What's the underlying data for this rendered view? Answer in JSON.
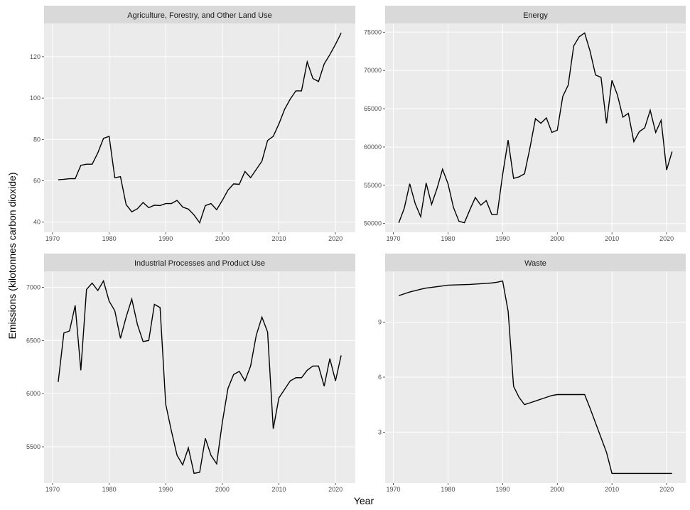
{
  "xlabel": "Year",
  "ylabel": "Emissions (kilotonnes carbon dioxide)",
  "chart_data": [
    {
      "type": "line",
      "title": "Agriculture, Forestry, and Other Land Use",
      "color": "#000000",
      "grid": true,
      "x": [
        1971,
        1972,
        1973,
        1974,
        1975,
        1976,
        1977,
        1978,
        1979,
        1980,
        1981,
        1982,
        1983,
        1984,
        1985,
        1986,
        1987,
        1988,
        1989,
        1990,
        1991,
        1992,
        1993,
        1994,
        1995,
        1996,
        1997,
        1998,
        1999,
        2000,
        2001,
        2002,
        2003,
        2004,
        2005,
        2006,
        2007,
        2008,
        2009,
        2010,
        2011,
        2012,
        2013,
        2014,
        2015,
        2016,
        2017,
        2018,
        2019,
        2020,
        2021
      ],
      "values": [
        60.5,
        60.7,
        61,
        61,
        67.5,
        68,
        68,
        73.5,
        80.5,
        81.5,
        61.5,
        62,
        48.5,
        45,
        46.5,
        49.5,
        47,
        48.2,
        48,
        49,
        49,
        50.5,
        47.3,
        46.3,
        43.5,
        39.7,
        48,
        49,
        46,
        50.5,
        55.5,
        58.5,
        58.3,
        64.5,
        61.5,
        65.5,
        69.5,
        79.5,
        81.5,
        87.5,
        94.5,
        99.5,
        103.5,
        103.5,
        117.5,
        109.5,
        108,
        116.5,
        121,
        126,
        131.5
      ],
      "xlim": [
        1968.5,
        2023.5
      ],
      "xticks": [
        1970,
        1980,
        1990,
        2000,
        2010,
        2020
      ],
      "ylim": [
        35.1,
        136.1
      ],
      "yticks": [
        40,
        60,
        80,
        100,
        120
      ]
    },
    {
      "type": "line",
      "title": "Energy",
      "color": "#000000",
      "grid": true,
      "x": [
        1971,
        1972,
        1973,
        1974,
        1975,
        1976,
        1977,
        1978,
        1979,
        1980,
        1981,
        1982,
        1983,
        1984,
        1985,
        1986,
        1987,
        1988,
        1989,
        1990,
        1991,
        1992,
        1993,
        1994,
        1995,
        1996,
        1997,
        1998,
        1999,
        2000,
        2001,
        2002,
        2003,
        2004,
        2005,
        2006,
        2007,
        2008,
        2009,
        2010,
        2011,
        2012,
        2013,
        2014,
        2015,
        2016,
        2017,
        2018,
        2019,
        2020,
        2021
      ],
      "values": [
        50100,
        52000,
        55200,
        52600,
        50900,
        55300,
        52500,
        54600,
        57100,
        55200,
        52100,
        50300,
        50100,
        51800,
        53400,
        52400,
        53000,
        51200,
        51200,
        56400,
        60900,
        55900,
        56100,
        56500,
        59900,
        63700,
        63100,
        63800,
        61900,
        62200,
        66600,
        68100,
        73200,
        74400,
        74900,
        72500,
        69400,
        69100,
        63100,
        68700,
        66800,
        63900,
        64400,
        60700,
        62000,
        62500,
        64800,
        61900,
        63500,
        57000,
        59400
      ],
      "xlim": [
        1968.5,
        2023.5
      ],
      "xticks": [
        1970,
        1980,
        1990,
        2000,
        2010,
        2020
      ],
      "ylim": [
        48860,
        76140
      ],
      "yticks": [
        50000,
        55000,
        60000,
        65000,
        70000,
        75000
      ]
    },
    {
      "type": "line",
      "title": "Industrial Processes and Product Use",
      "color": "#000000",
      "grid": true,
      "x": [
        1971,
        1972,
        1973,
        1974,
        1975,
        1976,
        1977,
        1978,
        1979,
        1980,
        1981,
        1982,
        1983,
        1984,
        1985,
        1986,
        1987,
        1988,
        1989,
        1990,
        1991,
        1992,
        1993,
        1994,
        1995,
        1996,
        1997,
        1998,
        1999,
        2000,
        2001,
        2002,
        2003,
        2004,
        2005,
        2006,
        2007,
        2008,
        2009,
        2010,
        2011,
        2012,
        2013,
        2014,
        2015,
        2016,
        2017,
        2018,
        2019,
        2020,
        2021
      ],
      "values": [
        6110,
        6570,
        6590,
        6830,
        6220,
        6980,
        7040,
        6970,
        7060,
        6870,
        6780,
        6520,
        6720,
        6890,
        6650,
        6490,
        6500,
        6840,
        6810,
        5900,
        5650,
        5420,
        5330,
        5490,
        5250,
        5260,
        5580,
        5420,
        5340,
        5730,
        6050,
        6180,
        6210,
        6120,
        6260,
        6550,
        6720,
        6580,
        5670,
        5960,
        6040,
        6120,
        6150,
        6150,
        6220,
        6260,
        6260,
        6070,
        6330,
        6120,
        6360
      ],
      "xlim": [
        1968.5,
        2023.5
      ],
      "xticks": [
        1970,
        1980,
        1990,
        2000,
        2010,
        2020
      ],
      "ylim": [
        5159.5,
        7150.5
      ],
      "yticks": [
        5500,
        6000,
        6500,
        7000
      ]
    },
    {
      "type": "line",
      "title": "Waste",
      "color": "#000000",
      "grid": true,
      "x": [
        1971,
        1972,
        1973,
        1974,
        1975,
        1976,
        1977,
        1978,
        1979,
        1980,
        1981,
        1982,
        1983,
        1984,
        1985,
        1986,
        1987,
        1988,
        1989,
        1990,
        1991,
        1992,
        1993,
        1994,
        1995,
        1996,
        1997,
        1998,
        1999,
        2000,
        2001,
        2002,
        2003,
        2004,
        2005,
        2006,
        2007,
        2008,
        2009,
        2010,
        2011,
        2012,
        2013,
        2014,
        2015,
        2016,
        2017,
        2018,
        2019,
        2020,
        2021
      ],
      "values": [
        10.45,
        10.55,
        10.65,
        10.72,
        10.8,
        10.86,
        10.9,
        10.94,
        10.98,
        11.02,
        11.03,
        11.04,
        11.05,
        11.06,
        11.08,
        11.1,
        11.12,
        11.14,
        11.18,
        11.25,
        9.6,
        5.5,
        4.9,
        4.5,
        4.6,
        4.7,
        4.8,
        4.9,
        5.0,
        5.05,
        5.05,
        5.05,
        5.05,
        5.05,
        5.05,
        4.3,
        3.5,
        2.7,
        1.9,
        0.75,
        0.75,
        0.75,
        0.75,
        0.75,
        0.75,
        0.75,
        0.75,
        0.75,
        0.75,
        0.75,
        0.75
      ],
      "xlim": [
        1968.5,
        2023.5
      ],
      "xticks": [
        1970,
        1980,
        1990,
        2000,
        2010,
        2020
      ],
      "ylim": [
        0.225,
        11.775
      ],
      "yticks": [
        3,
        6,
        9
      ]
    }
  ]
}
